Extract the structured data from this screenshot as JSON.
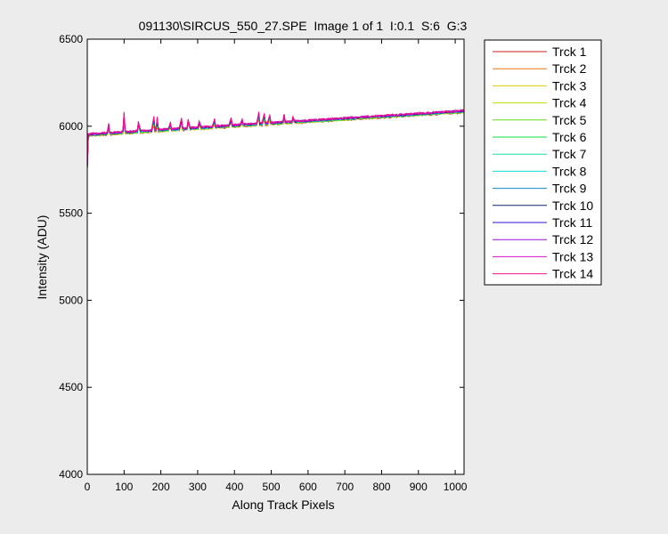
{
  "chart_data": {
    "type": "line",
    "title": "091130\\SIRCUS_550_27.SPE  Image 1 of 1  I:0.1  S:6  G:3",
    "xlabel": "Along Track Pixels",
    "ylabel": "Intensity (ADU)",
    "xlim": [
      0,
      1024
    ],
    "ylim": [
      4000,
      6500
    ],
    "xticks": [
      0,
      100,
      200,
      300,
      400,
      500,
      600,
      700,
      800,
      900,
      1000
    ],
    "yticks": [
      4000,
      4500,
      5000,
      5500,
      6000,
      6500
    ],
    "grid": false,
    "legend_position": "outside-right",
    "baseline": {
      "x": [
        0,
        1024
      ],
      "y": [
        5950,
        6085
      ]
    },
    "start_drop": {
      "x": [
        0,
        3
      ],
      "y": [
        5760,
        5950
      ]
    },
    "peaks": [
      {
        "x": 58,
        "y": 6015
      },
      {
        "x": 100,
        "y": 6075
      },
      {
        "x": 140,
        "y": 6035
      },
      {
        "x": 180,
        "y": 6075
      },
      {
        "x": 190,
        "y": 6045
      },
      {
        "x": 225,
        "y": 6025
      },
      {
        "x": 255,
        "y": 6055
      },
      {
        "x": 275,
        "y": 6050
      },
      {
        "x": 305,
        "y": 6030
      },
      {
        "x": 345,
        "y": 6050
      },
      {
        "x": 390,
        "y": 6055
      },
      {
        "x": 420,
        "y": 6045
      },
      {
        "x": 465,
        "y": 6095
      },
      {
        "x": 480,
        "y": 6090
      },
      {
        "x": 495,
        "y": 6075
      },
      {
        "x": 535,
        "y": 6065
      },
      {
        "x": 560,
        "y": 6055
      }
    ],
    "series": [
      {
        "name": "Trck 1",
        "color": "#cc2222"
      },
      {
        "name": "Trck 2",
        "color": "#ee7711"
      },
      {
        "name": "Trck 3",
        "color": "#ddcc00"
      },
      {
        "name": "Trck 4",
        "color": "#bbdd00"
      },
      {
        "name": "Trck 5",
        "color": "#66dd11"
      },
      {
        "name": "Trck 6",
        "color": "#11dd44"
      },
      {
        "name": "Trck 7",
        "color": "#11ddaa"
      },
      {
        "name": "Trck 8",
        "color": "#11dddd"
      },
      {
        "name": "Trck 9",
        "color": "#1188cc"
      },
      {
        "name": "Trck 10",
        "color": "#112266"
      },
      {
        "name": "Trck 11",
        "color": "#3311cc"
      },
      {
        "name": "Trck 12",
        "color": "#9911dd"
      },
      {
        "name": "Trck 13",
        "color": "#dd11cc"
      },
      {
        "name": "Trck 14",
        "color": "#ee1188"
      }
    ]
  }
}
